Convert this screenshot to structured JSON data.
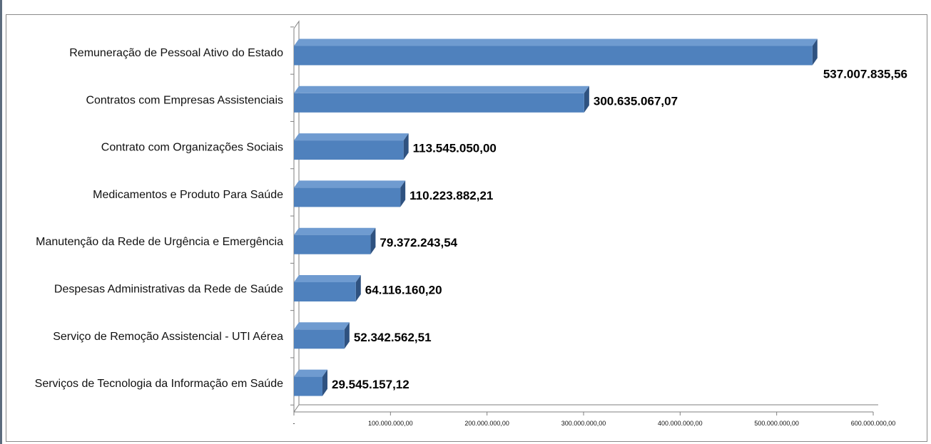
{
  "chart_data": {
    "type": "bar",
    "orientation": "horizontal",
    "categories": [
      "Remuneração de Pessoal Ativo do Estado",
      "Contratos com Empresas Assistenciais",
      "Contrato com Organizações Sociais",
      "Medicamentos e Produto Para Saúde",
      "Manutenção da Rede de Urgência e Emergência",
      "Despesas Administrativas da Rede de Saúde",
      "Serviço de Remoção Assistencial - UTI Aérea",
      "Serviços de Tecnologia da Informação em Saúde"
    ],
    "values": [
      537007835.56,
      300635067.07,
      113545050.0,
      110223882.21,
      79372243.54,
      64116160.2,
      52342562.51,
      29545157.12
    ],
    "value_labels": [
      "537.007.835,56",
      "300.635.067,07",
      "113.545.050,00",
      "110.223.882,21",
      "79.372.243,54",
      "64.116.160,20",
      "52.342.562,51",
      "29.545.157,12"
    ],
    "xlim": [
      0,
      600000000
    ],
    "x_ticks": [
      0,
      100000000,
      200000000,
      300000000,
      400000000,
      500000000,
      600000000
    ],
    "x_tick_labels": [
      "-",
      "100.000.000,00",
      "200.000.000,00",
      "300.000.000,00",
      "400.000.000,00",
      "500.000.000,00",
      "600.000.000,00"
    ],
    "title": "",
    "xlabel": "",
    "ylabel": "",
    "grid": false,
    "legend": "none",
    "style": "3d",
    "colors": {
      "bar_front": "#4f81bd",
      "bar_top": "#6f9bd0",
      "bar_side": "#2f5280",
      "axis": "#7f7f7f"
    }
  }
}
